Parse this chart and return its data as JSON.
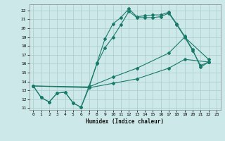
{
  "xlabel": "Humidex (Indice chaleur)",
  "bg_color": "#cce8e8",
  "grid_color": "#aacccc",
  "line_color": "#1a7a6a",
  "xlim": [
    -0.5,
    23.5
  ],
  "ylim": [
    10.8,
    22.7
  ],
  "xticks": [
    0,
    1,
    2,
    3,
    4,
    5,
    6,
    7,
    8,
    9,
    10,
    11,
    12,
    13,
    14,
    15,
    16,
    17,
    18,
    19,
    20,
    21,
    22,
    23
  ],
  "yticks": [
    11,
    12,
    13,
    14,
    15,
    16,
    17,
    18,
    19,
    20,
    21,
    22
  ],
  "line1_x": [
    0,
    1,
    2,
    3,
    4,
    5,
    6,
    7,
    8,
    9,
    10,
    11,
    12,
    13,
    14,
    15,
    16,
    17,
    18,
    19,
    20,
    21,
    22
  ],
  "line1_y": [
    13.5,
    12.2,
    11.7,
    12.7,
    12.8,
    11.6,
    11.1,
    13.5,
    16.0,
    17.8,
    19.0,
    20.4,
    21.9,
    21.2,
    21.2,
    21.2,
    21.3,
    21.7,
    20.4,
    19.0,
    17.5,
    15.8,
    16.2
  ],
  "line2_x": [
    0,
    1,
    2,
    3,
    4,
    5,
    6,
    7,
    8,
    9,
    10,
    11,
    12,
    13,
    14,
    15,
    16,
    17,
    18,
    19,
    20,
    21,
    22
  ],
  "line2_y": [
    13.5,
    12.2,
    11.7,
    12.7,
    12.8,
    11.6,
    11.1,
    13.3,
    16.1,
    18.8,
    20.5,
    21.2,
    22.2,
    21.3,
    21.4,
    21.5,
    21.5,
    21.8,
    20.5,
    19.1,
    17.6,
    15.6,
    16.2
  ],
  "line3_x": [
    0,
    7,
    10,
    13,
    17,
    19,
    22
  ],
  "line3_y": [
    13.5,
    13.3,
    13.8,
    14.3,
    15.5,
    16.5,
    16.2
  ],
  "line4_x": [
    0,
    7,
    10,
    13,
    17,
    19,
    22
  ],
  "line4_y": [
    13.5,
    13.4,
    14.5,
    15.5,
    17.2,
    19.0,
    16.5
  ]
}
